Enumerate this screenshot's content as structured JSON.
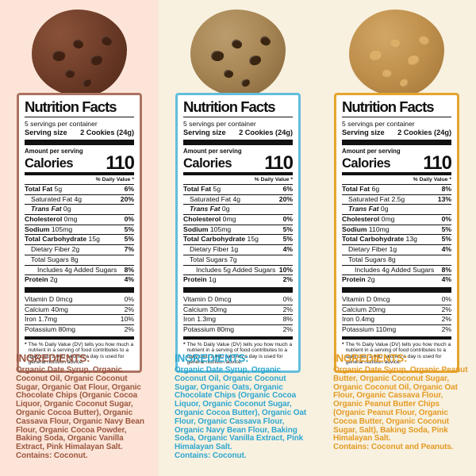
{
  "shared": {
    "title": "Nutrition Facts",
    "servings_per_container": "5 servings per container",
    "serving_size_label": "Serving size",
    "serving_size_value": "2 Cookies (24g)",
    "amount_per_serving": "Amount per serving",
    "calories_label": "Calories",
    "calories_value": "110",
    "daily_value_header": "% Daily Value *",
    "footnote_star": "*",
    "footnote": "The % Daily Value (DV) tells you how much a nutrient in a serving of food contributes to a daily diet. 2,000 calories a day is used for general nutrition advice.",
    "ingredients_heading": "INGREDIENTS:"
  },
  "columns": [
    {
      "cookie": "chocolate-cookie",
      "theme": {
        "background": "#fce5d8",
        "border": "#ac7361",
        "ingredients_text": "#9c5740",
        "cookie_base": "#74412c",
        "cookie_chip": "#3f2013"
      },
      "panel": {
        "rows": [
          {
            "bold": "Total Fat",
            "rest": " 5g",
            "percent": "6%",
            "indent": 0
          },
          {
            "rest": "Saturated Fat 4g",
            "percent": "20%",
            "indent": 1
          },
          {
            "italic": "Trans Fat",
            "rest": " 0g",
            "percent": "",
            "indent": 1
          },
          {
            "bold": "Cholesterol",
            "rest": " 0mg",
            "percent": "0%",
            "indent": 0
          },
          {
            "bold": "Sodium",
            "rest": " 105mg",
            "percent": "5%",
            "indent": 0
          },
          {
            "bold": "Total Carbohydrate",
            "rest": " 15g",
            "percent": "5%",
            "indent": 0
          },
          {
            "rest": "Dietary Fiber 2g",
            "percent": "7%",
            "indent": 1
          },
          {
            "rest": "Total Sugars 8g",
            "percent": "",
            "indent": 1
          },
          {
            "rest": "Includes 4g Added Sugars",
            "percent": "8%",
            "indent": 2
          },
          {
            "bold": "Protein",
            "rest": " 2g",
            "percent": "4%",
            "indent": 0
          }
        ],
        "minerals": [
          {
            "label": "Vitamin D 0mcg",
            "percent": "0%"
          },
          {
            "label": "Calcium 40mg",
            "percent": "2%"
          },
          {
            "label": "Iron 1.7mg",
            "percent": "10%"
          },
          {
            "label": "Potassium 80mg",
            "percent": "2%"
          }
        ]
      },
      "ingredients": {
        "body": "Organic Date Syrup, Organic Coconut Oil, Organic Coconut Sugar, Organic Oat Flour, Organic Chocolate Chips (Organic Cocoa Liquor, Organic Coconut Sugar, Organic Cocoa Butter), Organic Cassava Flour, Organic Navy Bean Flour, Organic Cocoa Powder, Baking Soda, Organic Vanilla Extract, Pink Himalayan Salt.",
        "contains": "Contains: Coconut."
      }
    },
    {
      "cookie": "chocolate-chip-cookie",
      "theme": {
        "background": "#f8f1e0",
        "border": "#62bedc",
        "ingredients_text": "#2ea7cf",
        "cookie_base": "#a98856",
        "cookie_chip": "#3a2511"
      },
      "panel": {
        "rows": [
          {
            "bold": "Total Fat",
            "rest": " 5g",
            "percent": "6%",
            "indent": 0
          },
          {
            "rest": "Saturated Fat 4g",
            "percent": "20%",
            "indent": 1
          },
          {
            "italic": "Trans Fat",
            "rest": " 0g",
            "percent": "",
            "indent": 1
          },
          {
            "bold": "Cholesterol",
            "rest": " 0mg",
            "percent": "0%",
            "indent": 0
          },
          {
            "bold": "Sodium",
            "rest": " 105mg",
            "percent": "5%",
            "indent": 0
          },
          {
            "bold": "Total Carbohydrate",
            "rest": " 15g",
            "percent": "5%",
            "indent": 0
          },
          {
            "rest": "Dietary Fiber 1g",
            "percent": "4%",
            "indent": 1
          },
          {
            "rest": "Total Sugars 7g",
            "percent": "",
            "indent": 1
          },
          {
            "rest": "Includes 5g Added Sugars",
            "percent": "10%",
            "indent": 2
          },
          {
            "bold": "Protein",
            "rest": " 1g",
            "percent": "2%",
            "indent": 0
          }
        ],
        "minerals": [
          {
            "label": "Vitamin D 0mcg",
            "percent": "0%"
          },
          {
            "label": "Calcium 30mg",
            "percent": "2%"
          },
          {
            "label": "Iron 1.3mg",
            "percent": "8%"
          },
          {
            "label": "Potassium 80mg",
            "percent": "2%"
          }
        ]
      },
      "ingredients": {
        "body": "Organic Date Syrup, Organic Coconut Oil, Organic Coconut Sugar, Organic Oats, Organic Chocolate Chips (Organic Cocoa Liquor, Organic Coconut Sugar, Organic Cocoa Butter), Organic Oat Flour, Organic Cassava Flour, Organic Navy Bean Flour, Baking Soda, Organic Vanilla Extract, Pink Himalayan Salt.",
        "contains": "Contains: Coconut."
      }
    },
    {
      "cookie": "peanut-butter-cookie",
      "theme": {
        "background": "#f8f1e0",
        "border": "#e6a42d",
        "ingredients_text": "#e49b25",
        "cookie_base": "#bf8f4c",
        "cookie_chip": "#dcae67"
      },
      "panel": {
        "rows": [
          {
            "bold": "Total Fat",
            "rest": " 6g",
            "percent": "8%",
            "indent": 0
          },
          {
            "rest": "Saturated Fat 2.5g",
            "percent": "13%",
            "indent": 1
          },
          {
            "italic": "Trans Fat",
            "rest": " 0g",
            "percent": "",
            "indent": 1
          },
          {
            "bold": "Cholesterol",
            "rest": " 0mg",
            "percent": "0%",
            "indent": 0
          },
          {
            "bold": "Sodium",
            "rest": " 110mg",
            "percent": "5%",
            "indent": 0
          },
          {
            "bold": "Total Carbohydrate",
            "rest": " 13g",
            "percent": "5%",
            "indent": 0
          },
          {
            "rest": "Dietary Fiber 1g",
            "percent": "4%",
            "indent": 1
          },
          {
            "rest": "Total Sugars 8g",
            "percent": "",
            "indent": 1
          },
          {
            "rest": "Includes 4g Added Sugars",
            "percent": "8%",
            "indent": 2
          },
          {
            "bold": "Protein",
            "rest": " 2g",
            "percent": "4%",
            "indent": 0
          }
        ],
        "minerals": [
          {
            "label": "Vitamin D 0mcg",
            "percent": "0%"
          },
          {
            "label": "Calcium 20mg",
            "percent": "2%"
          },
          {
            "label": "Iron 0.4mg",
            "percent": "2%"
          },
          {
            "label": "Potassium 110mg",
            "percent": "2%"
          }
        ]
      },
      "ingredients": {
        "body": "Organic Date Syrup, Organic Peanut Butter, Organic Coconut Sugar, Organic Coconut Oil, Organic Oat Flour, Organic Cassava Flour, Organic Peanut Butter Chips (Organic Peanut Flour, Organic Cocoa Butter, Organic Coconut Sugar, Salt), Baking Soda, Pink Himalayan Salt.",
        "contains": "Contains: Coconut and Peanuts."
      }
    }
  ]
}
